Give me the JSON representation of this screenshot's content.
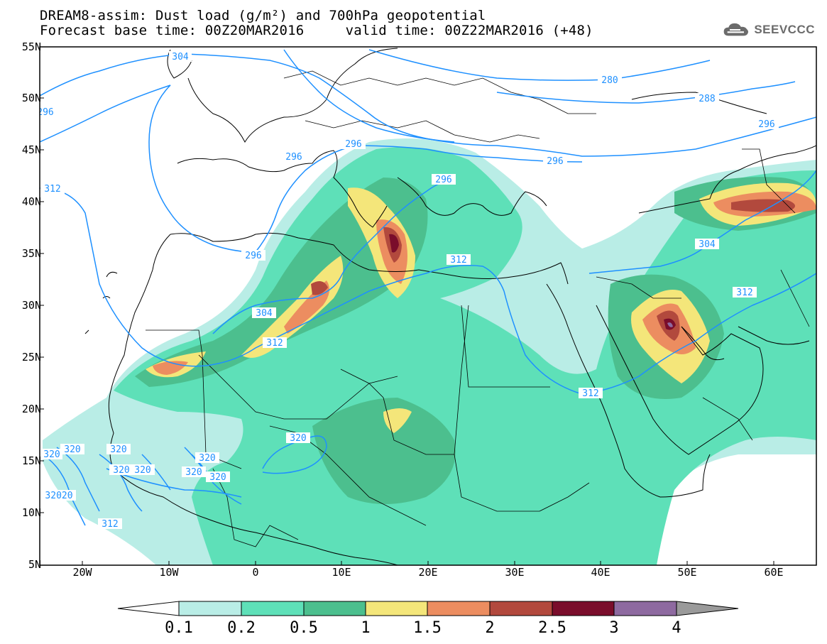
{
  "title": {
    "line1": "DREAM8-assim: Dust load (g/m²) and 700hPa geopotential",
    "line2": "Forecast base time: 00Z20MAR2016     valid time: 00Z22MAR2016 (+48)"
  },
  "logo": {
    "text": "SEEVCCC",
    "icon": "cloud-logo-icon"
  },
  "axes": {
    "lat_labels": [
      "55N",
      "50N",
      "45N",
      "40N",
      "35N",
      "30N",
      "25N",
      "20N",
      "15N",
      "10N",
      "5N"
    ],
    "lon_labels": [
      "20W",
      "10W",
      "0",
      "10E",
      "20E",
      "30E",
      "40E",
      "50E",
      "60E"
    ]
  },
  "contours": {
    "labels": [
      "304",
      "280",
      "288",
      "296",
      "296",
      "296",
      "296",
      "296",
      "312",
      "296",
      "304",
      "312",
      "312",
      "312",
      "304",
      "312",
      "312",
      "320",
      "320",
      "320",
      "320",
      "320",
      "320",
      "320",
      "320",
      "320",
      "32020",
      "296"
    ],
    "color": "#1e90ff"
  },
  "colorbar": {
    "labels": [
      "0.1",
      "0.2",
      "0.5",
      "1",
      "1.5",
      "2",
      "2.5",
      "3",
      "4"
    ],
    "colors": [
      "#ffffff",
      "#b9ede6",
      "#5ee0b8",
      "#4cbf8e",
      "#f4e67a",
      "#ec8d60",
      "#b2493d",
      "#7a0d2b",
      "#8e6aa0",
      "#9a9a9a"
    ]
  },
  "dust_colors": {
    "c1": "#b9ede6",
    "c2": "#5ee0b8",
    "c3": "#4cbf8e",
    "c4": "#f4e67a",
    "c5": "#ec8d60",
    "c6": "#b2493d",
    "c7": "#7a0d2b",
    "c8": "#8e6aa0"
  }
}
